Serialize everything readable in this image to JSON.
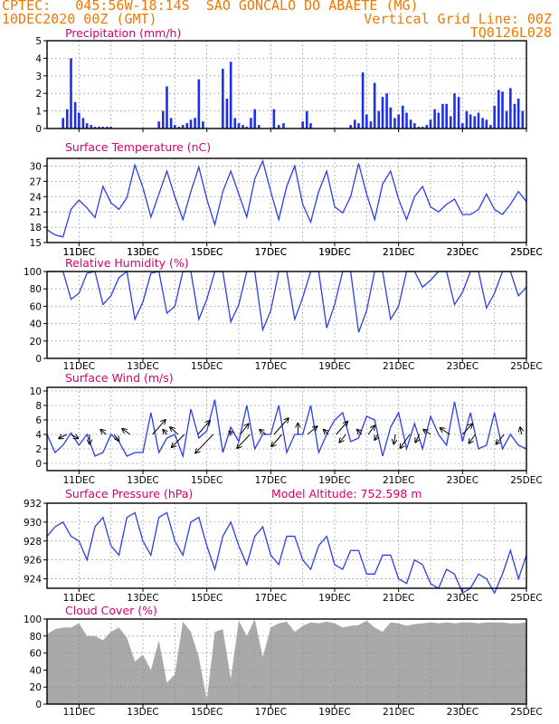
{
  "header": {
    "source": "CPTEC:",
    "location": "045:56W-18:14S  SAO GONCALO DO ABAETE (MG)",
    "date": "10DEC2020 00Z (GMT)",
    "grid_note": "Vertical Grid Line: 00Z",
    "model": "TQ0126L028"
  },
  "x_tick_labels": [
    "11DEC",
    "13DEC",
    "15DEC",
    "17DEC",
    "19DEC",
    "21DEC",
    "23DEC",
    "25DEC"
  ],
  "colors": {
    "line": "#2a3fe6",
    "bar": "#1f2fe6",
    "cloud": "#a9a9a9",
    "title": "#d4006e",
    "header": "#f07800"
  },
  "chart_data": [
    {
      "type": "bar",
      "title": "Precipitation (mm/h)",
      "x_unit": "days since 10DEC2020 00Z",
      "ylim": [
        0,
        5
      ],
      "yticks": [
        0,
        1,
        2,
        3,
        4,
        5
      ],
      "x": [
        0.5,
        0.63,
        0.75,
        0.88,
        1.0,
        1.13,
        1.25,
        1.38,
        1.5,
        1.63,
        1.75,
        1.88,
        2.0,
        3.5,
        3.63,
        3.75,
        3.88,
        4.0,
        4.13,
        4.25,
        4.38,
        4.5,
        4.63,
        4.75,
        4.88,
        5.5,
        5.63,
        5.75,
        5.88,
        6.0,
        6.13,
        6.25,
        6.38,
        6.5,
        6.63,
        7.1,
        7.25,
        7.4,
        8.0,
        8.13,
        8.25,
        9.5,
        9.63,
        9.75,
        9.88,
        10.0,
        10.13,
        10.25,
        10.38,
        10.5,
        10.63,
        10.75,
        10.88,
        11.0,
        11.13,
        11.25,
        11.38,
        11.5,
        11.63,
        11.75,
        11.88,
        12.0,
        12.13,
        12.25,
        12.38,
        12.5,
        12.63,
        12.75,
        12.88,
        13.0,
        13.13,
        13.25,
        13.38,
        13.5,
        13.63,
        13.75,
        13.88,
        14.0,
        14.13,
        14.25,
        14.38,
        14.5,
        14.63,
        14.75,
        14.88
      ],
      "values": [
        0.6,
        1.1,
        4.0,
        1.5,
        0.9,
        0.6,
        0.3,
        0.2,
        0.1,
        0.1,
        0.1,
        0.1,
        0.1,
        0.4,
        1.0,
        2.4,
        0.6,
        0.2,
        0.1,
        0.2,
        0.3,
        0.5,
        0.6,
        2.8,
        0.4,
        3.4,
        1.7,
        3.8,
        0.6,
        0.3,
        0.2,
        0.1,
        0.6,
        1.1,
        0.2,
        1.1,
        0.2,
        0.3,
        0.4,
        1.0,
        0.3,
        0.2,
        0.5,
        0.3,
        3.2,
        0.8,
        0.4,
        2.6,
        1.0,
        1.8,
        2.0,
        1.2,
        0.6,
        0.8,
        1.3,
        0.9,
        0.5,
        0.3,
        0.1,
        0.1,
        0.2,
        0.5,
        1.1,
        0.9,
        1.4,
        1.4,
        0.7,
        2.0,
        1.8,
        0.3,
        1.0,
        0.8,
        0.7,
        0.9,
        0.6,
        0.5,
        0.2,
        1.3,
        2.2,
        2.1,
        1.0,
        2.3,
        1.4,
        1.7,
        1.0
      ]
    },
    {
      "type": "line",
      "title": "Surface Temperature (nC)",
      "x_unit": "days since 10DEC2020 00Z",
      "ylim": [
        15,
        31.5
      ],
      "yticks": [
        15,
        18,
        21,
        24,
        27,
        30
      ],
      "x": [
        0,
        0.25,
        0.5,
        0.75,
        1.0,
        1.25,
        1.5,
        1.75,
        2.0,
        2.25,
        2.5,
        2.75,
        3.0,
        3.25,
        3.5,
        3.75,
        4.0,
        4.25,
        4.5,
        4.75,
        5.0,
        5.25,
        5.5,
        5.75,
        6.0,
        6.25,
        6.5,
        6.75,
        7.0,
        7.25,
        7.5,
        7.75,
        8.0,
        8.25,
        8.5,
        8.75,
        9.0,
        9.25,
        9.5,
        9.75,
        10.0,
        10.25,
        10.5,
        10.75,
        11.0,
        11.25,
        11.5,
        11.75,
        12.0,
        12.25,
        12.5,
        12.75,
        13.0,
        13.25,
        13.5,
        13.75,
        14.0,
        14.25,
        14.5,
        14.75,
        15.0
      ],
      "values": [
        17.5,
        16.5,
        16.1,
        21.5,
        23.3,
        21.8,
        19.9,
        26.0,
        22.8,
        21.5,
        23.8,
        30.2,
        25.8,
        20.0,
        24.5,
        29.0,
        24.0,
        19.5,
        25.0,
        29.8,
        23.5,
        18.5,
        25.0,
        29.0,
        24.5,
        20.0,
        27.5,
        31.0,
        25.0,
        19.5,
        26.0,
        30.0,
        22.5,
        19.0,
        25.0,
        29.0,
        22.0,
        20.8,
        24.0,
        30.5,
        24.5,
        19.5,
        26.5,
        29.0,
        23.5,
        19.5,
        24.0,
        26.0,
        22.0,
        21.0,
        22.5,
        23.5,
        20.5,
        20.5,
        21.5,
        24.5,
        21.5,
        20.5,
        22.5,
        25.0,
        23.0
      ]
    },
    {
      "type": "line",
      "title": "Relative Humidity (%)",
      "x_unit": "days since 10DEC2020 00Z",
      "ylim": [
        0,
        100
      ],
      "yticks": [
        0,
        20,
        40,
        60,
        80,
        100
      ],
      "x": [
        0,
        0.25,
        0.5,
        0.75,
        1.0,
        1.25,
        1.5,
        1.75,
        2.0,
        2.25,
        2.5,
        2.75,
        3.0,
        3.25,
        3.5,
        3.75,
        4.0,
        4.25,
        4.5,
        4.75,
        5.0,
        5.25,
        5.5,
        5.75,
        6.0,
        6.25,
        6.5,
        6.75,
        7.0,
        7.25,
        7.5,
        7.75,
        8.0,
        8.25,
        8.5,
        8.75,
        9.0,
        9.25,
        9.5,
        9.75,
        10.0,
        10.25,
        10.5,
        10.75,
        11.0,
        11.25,
        11.5,
        11.75,
        12.0,
        12.25,
        12.5,
        12.75,
        13.0,
        13.25,
        13.5,
        13.75,
        14.0,
        14.25,
        14.5,
        14.75,
        15.0
      ],
      "values": [
        100,
        100,
        100,
        68,
        75,
        98,
        100,
        62,
        72,
        93,
        100,
        45,
        65,
        98,
        100,
        52,
        60,
        100,
        100,
        45,
        68,
        100,
        100,
        42,
        62,
        100,
        100,
        33,
        55,
        100,
        100,
        45,
        70,
        100,
        100,
        35,
        62,
        100,
        100,
        30,
        55,
        100,
        100,
        45,
        60,
        100,
        100,
        82,
        90,
        100,
        100,
        62,
        76,
        100,
        100,
        58,
        75,
        100,
        100,
        72,
        82
      ]
    },
    {
      "type": "line",
      "title": "Surface Wind (m/s)",
      "x_unit": "days since 10DEC2020 00Z",
      "ylim": [
        -1,
        10.5
      ],
      "yticks": [
        0,
        2,
        4,
        6,
        8,
        10
      ],
      "x": [
        0,
        0.25,
        0.5,
        0.75,
        1.0,
        1.25,
        1.5,
        1.75,
        2.0,
        2.25,
        2.5,
        2.75,
        3.0,
        3.25,
        3.5,
        3.75,
        4.0,
        4.25,
        4.5,
        4.75,
        5.0,
        5.25,
        5.5,
        5.75,
        6.0,
        6.25,
        6.5,
        6.75,
        7.0,
        7.25,
        7.5,
        7.75,
        8.0,
        8.25,
        8.5,
        8.75,
        9.0,
        9.25,
        9.5,
        9.75,
        10.0,
        10.25,
        10.5,
        10.75,
        11.0,
        11.25,
        11.5,
        11.75,
        12.0,
        12.25,
        12.5,
        12.75,
        13.0,
        13.25,
        13.5,
        13.75,
        14.0,
        14.25,
        14.5,
        14.75,
        15.0
      ],
      "values": [
        4.0,
        1.5,
        2.5,
        4.2,
        2.5,
        4.0,
        1.0,
        1.5,
        4.0,
        3.0,
        1.0,
        1.5,
        1.5,
        7.0,
        1.5,
        3.5,
        4.0,
        1.0,
        7.5,
        3.5,
        4.5,
        8.8,
        1.5,
        5.0,
        3.0,
        8.0,
        2.0,
        4.0,
        4.0,
        8.0,
        1.5,
        4.0,
        4.0,
        8.0,
        1.5,
        4.0,
        6.0,
        7.0,
        3.0,
        3.5,
        6.5,
        6.0,
        1.0,
        5.0,
        7.0,
        2.0,
        5.5,
        2.0,
        6.5,
        4.0,
        2.5,
        8.5,
        3.0,
        7.0,
        2.0,
        2.5,
        7.0,
        2.0,
        4.0,
        2.5,
        2.0
      ],
      "vectors": [
        {
          "x": 0.62,
          "dx": -1.0,
          "dy": -0.5
        },
        {
          "x": 0.75,
          "dx": 0.9,
          "dy": -0.5
        },
        {
          "x": 1.33,
          "dx": 0.0,
          "dy": -1.2
        },
        {
          "x": 1.85,
          "dx": -0.7,
          "dy": 0.6
        },
        {
          "x": 2.1,
          "dx": 0.6,
          "dy": -0.8
        },
        {
          "x": 2.6,
          "dx": -1.0,
          "dy": 0.7
        },
        {
          "x": 3.3,
          "dx": 1.6,
          "dy": 1.8
        },
        {
          "x": 3.75,
          "dx": -0.5,
          "dy": 0.6
        },
        {
          "x": 4.1,
          "dx": -1.0,
          "dy": 0.9
        },
        {
          "x": 4.3,
          "dx": -1.6,
          "dy": -1.6
        },
        {
          "x": 4.72,
          "dx": 1.5,
          "dy": 1.7
        },
        {
          "x": 5.2,
          "dx": -2.2,
          "dy": -2.3
        },
        {
          "x": 5.8,
          "dx": -0.4,
          "dy": 0.4
        },
        {
          "x": 6.05,
          "dx": 1.0,
          "dy": 1.3
        },
        {
          "x": 6.35,
          "dx": -1.6,
          "dy": -1.7
        },
        {
          "x": 6.85,
          "dx": -0.8,
          "dy": 0.6
        },
        {
          "x": 7.1,
          "dx": 1.8,
          "dy": 2.0
        },
        {
          "x": 7.35,
          "dx": -1.3,
          "dy": -1.5
        },
        {
          "x": 7.85,
          "dx": 0.0,
          "dy": 1.4
        },
        {
          "x": 8.15,
          "dx": 1.2,
          "dy": 1.0
        },
        {
          "x": 8.8,
          "dx": -0.6,
          "dy": 0.6
        },
        {
          "x": 9.05,
          "dx": 1.4,
          "dy": 1.6
        },
        {
          "x": 9.35,
          "dx": -0.8,
          "dy": -1.0
        },
        {
          "x": 9.85,
          "dx": -0.6,
          "dy": 0.6
        },
        {
          "x": 10.05,
          "dx": 0.8,
          "dy": 1.1
        },
        {
          "x": 10.35,
          "dx": -0.4,
          "dy": -0.7
        },
        {
          "x": 10.9,
          "dx": -0.2,
          "dy": -1.2
        },
        {
          "x": 11.35,
          "dx": -1.2,
          "dy": -1.7
        },
        {
          "x": 11.65,
          "dx": -0.5,
          "dy": -1.0
        },
        {
          "x": 12.0,
          "dx": -0.9,
          "dy": 0.6
        },
        {
          "x": 12.6,
          "dx": -1.2,
          "dy": 0.8
        },
        {
          "x": 13.0,
          "dx": 1.2,
          "dy": 1.3
        },
        {
          "x": 13.4,
          "dx": -0.8,
          "dy": -1.1
        },
        {
          "x": 14.3,
          "dx": -1.0,
          "dy": -1.2
        },
        {
          "x": 14.85,
          "dx": -0.2,
          "dy": 0.9
        }
      ]
    },
    {
      "type": "line",
      "title": "Surface Pressure (hPa)",
      "annotation": "Model Altitude: 752.598 m",
      "x_unit": "days since 10DEC2020 00Z",
      "ylim": [
        923,
        932
      ],
      "yticks": [
        924,
        926,
        928,
        930,
        932
      ],
      "x": [
        0,
        0.25,
        0.5,
        0.75,
        1.0,
        1.25,
        1.5,
        1.75,
        2.0,
        2.25,
        2.5,
        2.75,
        3.0,
        3.25,
        3.5,
        3.75,
        4.0,
        4.25,
        4.5,
        4.75,
        5.0,
        5.25,
        5.5,
        5.75,
        6.0,
        6.25,
        6.5,
        6.75,
        7.0,
        7.25,
        7.5,
        7.75,
        8.0,
        8.25,
        8.5,
        8.75,
        9.0,
        9.25,
        9.5,
        9.75,
        10.0,
        10.25,
        10.5,
        10.75,
        11.0,
        11.25,
        11.5,
        11.75,
        12.0,
        12.25,
        12.5,
        12.75,
        13.0,
        13.25,
        13.5,
        13.75,
        14.0,
        14.25,
        14.5,
        14.75,
        15.0
      ],
      "values": [
        928.5,
        929.5,
        930.0,
        928.5,
        928.0,
        926.0,
        929.5,
        930.5,
        927.5,
        926.5,
        930.5,
        931.0,
        928.0,
        926.5,
        930.5,
        931.0,
        928.0,
        926.5,
        930.0,
        930.5,
        927.5,
        925.0,
        928.5,
        930.0,
        927.5,
        925.5,
        928.5,
        929.5,
        926.5,
        925.5,
        928.5,
        928.5,
        926.0,
        925.0,
        927.5,
        928.5,
        925.5,
        925.0,
        927.0,
        927.0,
        924.5,
        924.5,
        926.5,
        926.5,
        924.0,
        923.5,
        926.0,
        925.5,
        923.5,
        923.0,
        925.0,
        924.5,
        922.5,
        923.0,
        924.5,
        924.0,
        922.5,
        924.5,
        927.0,
        924.0,
        926.5
      ]
    },
    {
      "type": "area",
      "title": "Cloud Cover (%)",
      "x_unit": "days since 10DEC2020 00Z",
      "ylim": [
        0,
        100
      ],
      "yticks": [
        0,
        20,
        40,
        60,
        80,
        100
      ],
      "x": [
        0,
        0.25,
        0.5,
        0.75,
        1.0,
        1.25,
        1.5,
        1.75,
        2.0,
        2.25,
        2.5,
        2.75,
        3.0,
        3.25,
        3.5,
        3.75,
        4.0,
        4.25,
        4.5,
        4.75,
        5.0,
        5.25,
        5.5,
        5.75,
        6.0,
        6.25,
        6.5,
        6.75,
        7.0,
        7.25,
        7.5,
        7.75,
        8.0,
        8.25,
        8.5,
        8.75,
        9.0,
        9.25,
        9.5,
        9.75,
        10.0,
        10.25,
        10.5,
        10.75,
        11.0,
        11.25,
        11.5,
        11.75,
        12.0,
        12.25,
        12.5,
        12.75,
        13.0,
        13.25,
        13.5,
        13.75,
        14.0,
        14.25,
        14.5,
        14.75,
        15.0
      ],
      "values": [
        82,
        88,
        90,
        90,
        95,
        80,
        80,
        75,
        85,
        90,
        78,
        50,
        58,
        40,
        75,
        25,
        35,
        97,
        85,
        55,
        5,
        85,
        88,
        30,
        98,
        80,
        100,
        55,
        90,
        95,
        97,
        85,
        92,
        96,
        95,
        97,
        95,
        90,
        92,
        93,
        98,
        90,
        85,
        96,
        95,
        92,
        94,
        95,
        96,
        95,
        96,
        95,
        96,
        96,
        95,
        96,
        96,
        96,
        95,
        95,
        96
      ]
    }
  ]
}
